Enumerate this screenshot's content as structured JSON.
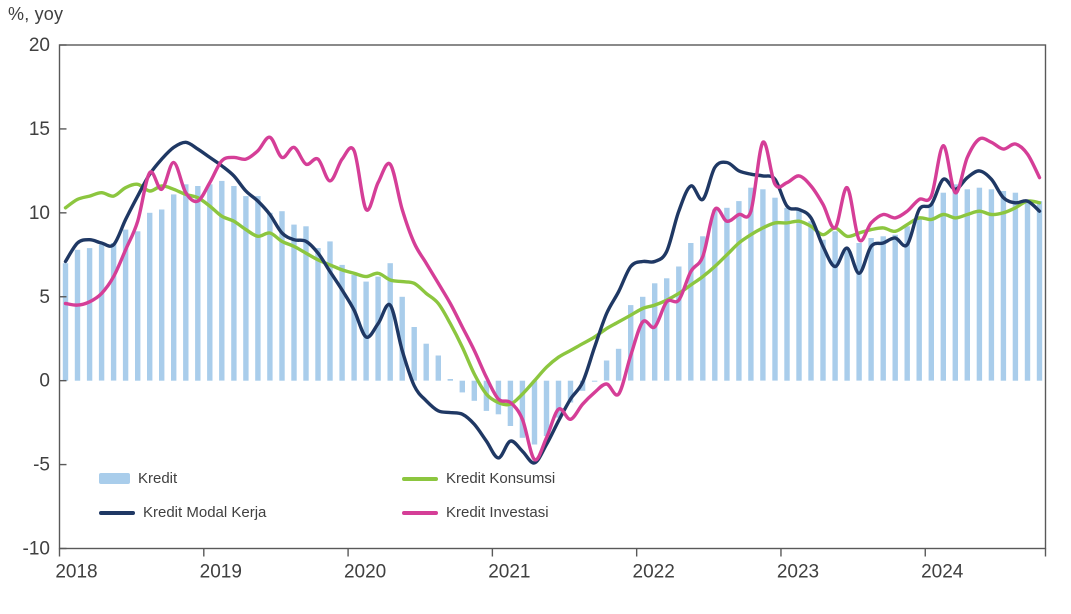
{
  "chart_data": {
    "type": "bar+line combo",
    "title": "",
    "ylabel": "%, yoy",
    "xlabel": "",
    "grid": false,
    "background": "#ffffff",
    "frame_color": "#595959",
    "tick_label_color": "#404040",
    "ylim": [
      -10,
      20
    ],
    "y_ticks": [
      20,
      15,
      10,
      5,
      0,
      -5,
      -10
    ],
    "x_tick_labels": [
      "2018",
      "2019",
      "2020",
      "2021",
      "2022",
      "2023",
      "2024"
    ],
    "x_start": "2018-01",
    "x_end": "2024-10",
    "months_per_year": 12,
    "legend_position": "bottom-left-inside",
    "series": [
      {
        "name": "Kredit",
        "type": "bar",
        "color": "#A9CDEB",
        "values": [
          7.0,
          7.8,
          7.9,
          8.1,
          8.2,
          9.0,
          8.9,
          10.0,
          10.2,
          11.1,
          11.7,
          11.6,
          11.7,
          11.9,
          11.6,
          11.0,
          11.0,
          10.0,
          10.1,
          9.3,
          9.2,
          7.9,
          8.3,
          6.9,
          6.3,
          5.9,
          6.2,
          7.0,
          5.0,
          3.2,
          2.2,
          1.5,
          0.1,
          -0.7,
          -1.2,
          -1.8,
          -2.0,
          -2.7,
          -3.4,
          -3.8,
          -3.3,
          -2.2,
          -1.3,
          -0.6,
          0.0,
          1.2,
          1.9,
          4.5,
          5.0,
          5.8,
          6.1,
          6.8,
          8.2,
          8.6,
          10.2,
          10.3,
          10.7,
          11.5,
          11.4,
          10.9,
          10.3,
          10.2,
          9.5,
          8.4,
          8.9,
          7.9,
          8.2,
          8.5,
          8.6,
          8.7,
          9.2,
          9.7,
          10.5,
          11.2,
          11.7,
          11.4,
          11.5,
          11.4,
          11.3,
          11.2,
          10.7,
          10.7
        ]
      },
      {
        "name": "Kredit Konsumsi",
        "type": "line",
        "color": "#8CC63F",
        "values": [
          10.3,
          10.8,
          11.0,
          11.2,
          11.0,
          11.5,
          11.7,
          11.3,
          11.6,
          11.4,
          11.1,
          10.9,
          10.4,
          9.8,
          9.5,
          9.0,
          8.6,
          8.8,
          8.3,
          8.0,
          7.6,
          7.2,
          6.9,
          6.6,
          6.4,
          6.2,
          6.4,
          6.0,
          5.9,
          5.8,
          5.2,
          4.6,
          3.4,
          2.0,
          0.4,
          -0.8,
          -1.3,
          -1.4,
          -0.8,
          0.0,
          0.8,
          1.4,
          1.8,
          2.2,
          2.6,
          3.1,
          3.5,
          3.9,
          4.3,
          4.5,
          4.8,
          5.2,
          5.7,
          6.2,
          6.8,
          7.5,
          8.2,
          8.7,
          9.1,
          9.4,
          9.4,
          9.5,
          9.2,
          8.7,
          9.1,
          8.6,
          8.8,
          9.0,
          9.1,
          8.9,
          9.3,
          9.7,
          9.6,
          9.9,
          9.7,
          9.9,
          10.1,
          9.9,
          10.0,
          10.3,
          10.7,
          10.6
        ]
      },
      {
        "name": "Kredit Modal Kerja",
        "type": "line",
        "color": "#1F3864",
        "values": [
          7.1,
          8.2,
          8.4,
          8.2,
          8.1,
          9.6,
          11.0,
          12.3,
          13.2,
          13.9,
          14.2,
          13.8,
          13.3,
          12.8,
          12.2,
          11.3,
          10.7,
          9.9,
          8.8,
          8.4,
          8.3,
          7.6,
          6.5,
          5.4,
          4.2,
          2.6,
          3.4,
          4.5,
          1.8,
          -0.3,
          -1.2,
          -1.8,
          -1.9,
          -2.0,
          -2.6,
          -3.6,
          -4.6,
          -3.6,
          -4.2,
          -4.9,
          -3.8,
          -2.4,
          -1.1,
          -0.1,
          2.0,
          4.0,
          5.3,
          6.8,
          7.1,
          7.1,
          7.7,
          10.1,
          11.6,
          10.8,
          12.7,
          13.0,
          12.5,
          12.3,
          12.2,
          12.0,
          10.4,
          10.2,
          9.7,
          8.0,
          6.8,
          7.9,
          6.4,
          8.0,
          8.2,
          8.5,
          8.1,
          10.2,
          10.5,
          12.0,
          11.4,
          12.1,
          12.5,
          12.0,
          10.9,
          10.6,
          10.7,
          10.1
        ]
      },
      {
        "name": "Kredit Investasi",
        "type": "line",
        "color": "#D53E97",
        "values": [
          4.6,
          4.5,
          4.7,
          5.2,
          6.2,
          7.8,
          9.5,
          12.4,
          11.4,
          13.0,
          11.2,
          10.7,
          11.8,
          13.1,
          13.3,
          13.2,
          13.7,
          14.5,
          13.3,
          13.9,
          12.9,
          13.2,
          11.9,
          13.2,
          13.7,
          10.2,
          11.8,
          12.9,
          10.2,
          8.2,
          7.0,
          5.8,
          4.6,
          3.2,
          1.8,
          0.2,
          -1.1,
          -1.3,
          -2.3,
          -4.7,
          -3.4,
          -1.7,
          -2.3,
          -1.4,
          -0.7,
          -0.2,
          -0.8,
          1.5,
          3.5,
          3.2,
          4.7,
          4.8,
          6.5,
          7.4,
          10.2,
          9.5,
          9.9,
          10.1,
          14.2,
          11.7,
          11.8,
          12.2,
          11.6,
          10.5,
          9.1,
          11.5,
          8.4,
          9.4,
          9.9,
          9.7,
          10.1,
          10.8,
          11.0,
          14.0,
          11.2,
          13.3,
          14.4,
          14.2,
          13.8,
          14.1,
          13.5,
          12.1
        ]
      }
    ]
  },
  "legend": {
    "items": [
      {
        "label": "Kredit",
        "swatch": "bar",
        "color": "#A9CDEB"
      },
      {
        "label": "Kredit Konsumsi",
        "swatch": "line",
        "color": "#8CC63F"
      },
      {
        "label": "Kredit Modal Kerja",
        "swatch": "line",
        "color": "#1F3864"
      },
      {
        "label": "Kredit Investasi",
        "swatch": "line",
        "color": "#D53E97"
      }
    ]
  }
}
